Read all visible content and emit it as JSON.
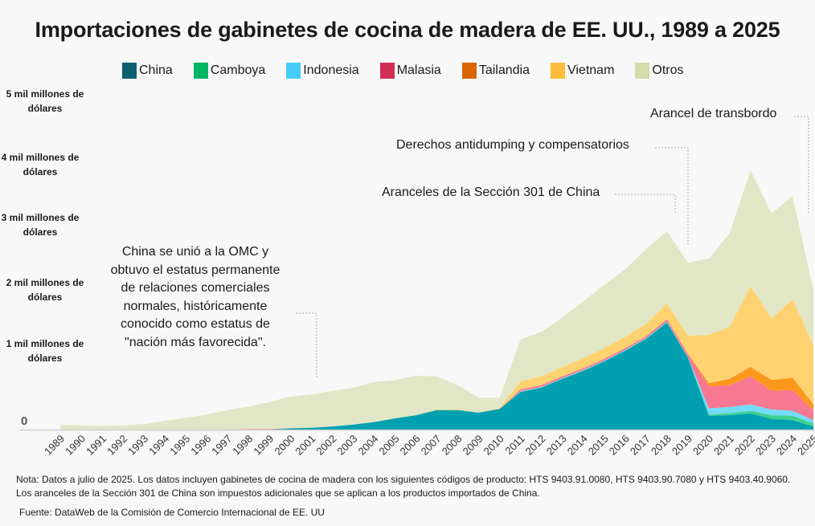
{
  "title": "Importaciones de gabinetes de cocina de madera de EE. UU., 1989 a 2025",
  "legend": [
    {
      "label": "China",
      "color": "#0d5f72"
    },
    {
      "label": "Camboya",
      "color": "#00b466"
    },
    {
      "label": "Indonesia",
      "color": "#45cdf7"
    },
    {
      "label": "Malasia",
      "color": "#d12e55"
    },
    {
      "label": "Tailandia",
      "color": "#d86500"
    },
    {
      "label": "Vietnam",
      "color": "#fdbc3a"
    },
    {
      "label": "Otros",
      "color": "#d3dcaa"
    }
  ],
  "annotations": {
    "wto": [
      "China se unió a la OMC y",
      "obtuvo el estatus permanente",
      "de relaciones comerciales",
      "normales, históricamente",
      "conocido como estatus de",
      "\"nación más favorecida\"."
    ],
    "section301": "Aranceles de la Sección 301 de China",
    "antidumping": "Derechos antidumping y compensatorios",
    "transshipment": "Arancel de transbordo"
  },
  "notes": {
    "note": "Nota: Datos a julio de 2025. Los datos incluyen gabinetes de cocina de madera con los siguientes códigos de producto: HTS 9403.91.0080, HTS 9403.90.7080 y HTS 9403.40.9060. Los aranceles de la Sección 301 de China son impuestos adicionales que se aplican a los productos importados de China.",
    "source": "Fuente: DataWeb de la Comisión de Comercio Internacional de EE. UU"
  },
  "chart_data": {
    "type": "area",
    "stacked": true,
    "title": "Importaciones de gabinetes de cocina de madera de EE. UU., 1989 a 2025",
    "unit": "mil millones de dólares",
    "ylim": [
      0,
      5
    ],
    "y_ticks": [
      {
        "value": 0,
        "label": "0"
      },
      {
        "value": 1,
        "label": "1 mil millones de dólares"
      },
      {
        "value": 2,
        "label": "2 mil millones de dólares"
      },
      {
        "value": 3,
        "label": "3 mil millones de dólares"
      },
      {
        "value": 4,
        "label": "4 mil millones de dólares"
      },
      {
        "value": 5,
        "label": "5 mil millones de dólares"
      }
    ],
    "legend_position": "top",
    "grid": false,
    "x": [
      1989,
      1990,
      1991,
      1992,
      1993,
      1994,
      1995,
      1996,
      1997,
      1998,
      1999,
      2000,
      2001,
      2002,
      2003,
      2004,
      2005,
      2006,
      2007,
      2008,
      2009,
      2010,
      2011,
      2012,
      2013,
      2014,
      2015,
      2016,
      2017,
      2018,
      2019,
      2020,
      2021,
      2022,
      2023,
      2024,
      2025
    ],
    "series": [
      {
        "name": "China",
        "area_color": "#00a0b0",
        "values": [
          0,
          0,
          0,
          0,
          0,
          0,
          0,
          0,
          0,
          0,
          0,
          0.02,
          0.03,
          0.05,
          0.08,
          0.12,
          0.18,
          0.23,
          0.31,
          0.31,
          0.27,
          0.33,
          0.6,
          0.67,
          0.81,
          0.94,
          1.09,
          1.26,
          1.45,
          1.71,
          1.15,
          0.22,
          0.23,
          0.26,
          0.17,
          0.15,
          0.05
        ]
      },
      {
        "name": "Camboya",
        "area_color": "#3fd08f",
        "values": [
          0,
          0,
          0,
          0,
          0,
          0,
          0,
          0,
          0,
          0,
          0,
          0,
          0,
          0,
          0,
          0,
          0,
          0,
          0,
          0,
          0,
          0,
          0,
          0,
          0,
          0,
          0,
          0,
          0,
          0,
          0,
          0.02,
          0.03,
          0.04,
          0.06,
          0.07,
          0.05
        ]
      },
      {
        "name": "Indonesia",
        "area_color": "#72dcfa",
        "values": [
          0,
          0,
          0,
          0,
          0,
          0,
          0,
          0,
          0,
          0,
          0,
          0,
          0,
          0,
          0,
          0,
          0,
          0,
          0,
          0,
          0,
          0,
          0.01,
          0.01,
          0.01,
          0.01,
          0.01,
          0.01,
          0.01,
          0.01,
          0.01,
          0.1,
          0.1,
          0.1,
          0.09,
          0.08,
          0.05
        ]
      },
      {
        "name": "Malasia",
        "area_color": "#f77892",
        "values": [
          0,
          0,
          0,
          0,
          0,
          0,
          0,
          0,
          0,
          0.01,
          0.01,
          0,
          0,
          0,
          0,
          0,
          0,
          0,
          0,
          0,
          0,
          0,
          0.03,
          0.03,
          0.03,
          0.03,
          0.03,
          0.03,
          0.03,
          0.04,
          0.05,
          0.35,
          0.35,
          0.45,
          0.3,
          0.33,
          0.15
        ]
      },
      {
        "name": "Tailandia",
        "area_color": "#fb981c",
        "values": [
          0,
          0,
          0,
          0,
          0,
          0,
          0,
          0,
          0,
          0,
          0,
          0,
          0,
          0,
          0,
          0,
          0,
          0,
          0,
          0,
          0,
          0,
          0,
          0,
          0,
          0,
          0,
          0,
          0,
          0,
          0,
          0.05,
          0.1,
          0.15,
          0.17,
          0.2,
          0.1
        ]
      },
      {
        "name": "Vietnam",
        "area_color": "#fed270",
        "values": [
          0,
          0,
          0,
          0,
          0,
          0,
          0,
          0,
          0,
          0,
          0,
          0,
          0,
          0,
          0,
          0,
          0,
          0,
          0.01,
          0.01,
          0,
          0.01,
          0.13,
          0.14,
          0.15,
          0.16,
          0.17,
          0.18,
          0.2,
          0.25,
          0.29,
          0.77,
          0.83,
          1.29,
          0.98,
          1.25,
          0.95
        ]
      },
      {
        "name": "Otros",
        "area_color": "#e1e7c6",
        "values": [
          0.08,
          0.07,
          0.06,
          0.07,
          0.09,
          0.14,
          0.19,
          0.24,
          0.31,
          0.36,
          0.43,
          0.51,
          0.53,
          0.57,
          0.59,
          0.64,
          0.61,
          0.63,
          0.53,
          0.39,
          0.24,
          0.17,
          0.67,
          0.71,
          0.79,
          0.91,
          1.01,
          1.08,
          1.19,
          1.16,
          1.17,
          1.22,
          1.5,
          1.85,
          1.68,
          1.65,
          0.89
        ]
      }
    ]
  }
}
